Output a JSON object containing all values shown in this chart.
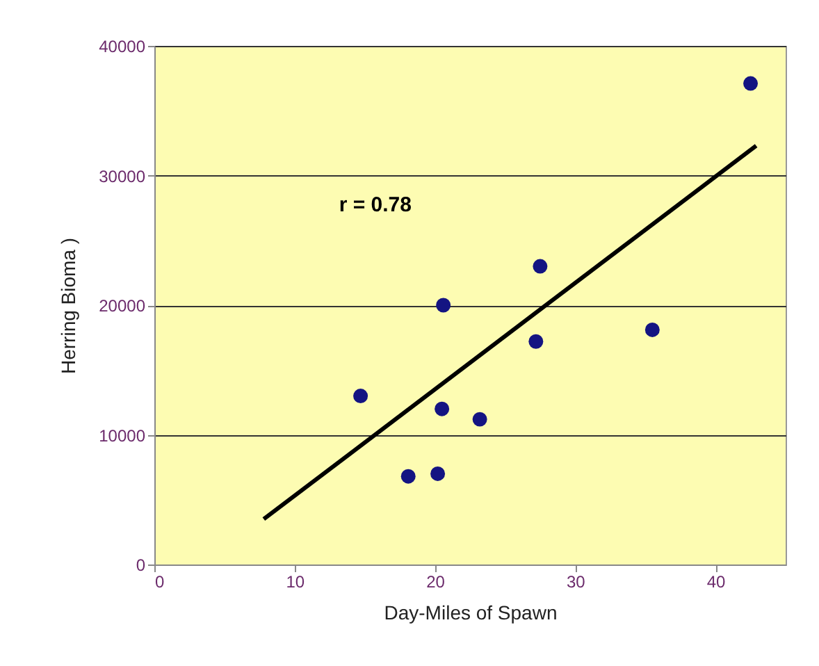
{
  "chart_data": {
    "type": "scatter",
    "xlabel": "Day-Miles of Spawn",
    "ylabel": "Herring Bioma )",
    "annotations": [
      "r = 0.78"
    ],
    "series": [
      {
        "color": "#141482",
        "marker": "circle",
        "x": [
          14.7,
          18.1,
          20.2,
          20.5,
          20.6,
          23.2,
          27.2,
          27.5,
          35.5,
          42.5
        ],
        "values": [
          13000,
          6800,
          7000,
          12000,
          20000,
          11200,
          17200,
          23000,
          18100,
          37100
        ]
      },
      {
        "type": "line",
        "color": "#000000",
        "x": [
          7.8,
          42.9
        ],
        "values": [
          3500,
          32300
        ]
      }
    ],
    "xlim": [
      0,
      45
    ],
    "xticks": [
      0,
      10,
      20,
      30,
      40
    ],
    "ylim": [
      0,
      40000
    ],
    "yticks": [
      0,
      10000,
      20000,
      30000,
      40000
    ],
    "grid": "y",
    "legend": false
  }
}
